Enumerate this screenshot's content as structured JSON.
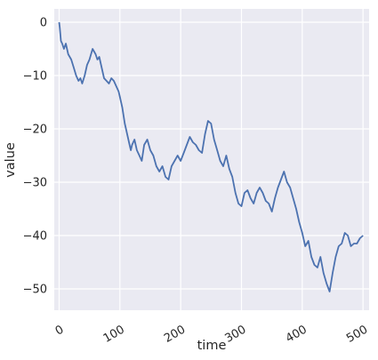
{
  "chart_data": {
    "type": "line",
    "xlabel": "time",
    "ylabel": "value",
    "xlim": [
      -8,
      510
    ],
    "ylim": [
      -54,
      2.5
    ],
    "xticks": [
      0,
      100,
      200,
      300,
      400,
      500
    ],
    "yticks": [
      0,
      -10,
      -20,
      -30,
      -40,
      -50
    ],
    "x_tick_labels": [
      "0",
      "100",
      "200",
      "300",
      "400",
      "500"
    ],
    "y_tick_labels": [
      "0",
      "−10",
      "−20",
      "−30",
      "−40",
      "−50"
    ],
    "grid": true,
    "background": "#eaeaf2",
    "line_color": "#4c72b0",
    "series": [
      {
        "x": [
          0,
          1,
          3,
          5,
          8,
          11,
          15,
          20,
          24,
          28,
          32,
          35,
          38,
          42,
          46,
          50,
          55,
          60,
          63,
          66,
          70,
          74,
          78,
          82,
          86,
          90,
          94,
          98,
          100,
          104,
          108,
          112,
          116,
          118,
          120,
          124,
          128,
          132,
          136,
          140,
          145,
          150,
          155,
          160,
          165,
          170,
          175,
          180,
          185,
          190,
          195,
          200,
          205,
          210,
          215,
          220,
          225,
          230,
          235,
          240,
          245,
          250,
          255,
          260,
          265,
          270,
          275,
          280,
          285,
          290,
          295,
          300,
          305,
          310,
          315,
          320,
          325,
          330,
          335,
          340,
          345,
          350,
          355,
          360,
          365,
          370,
          375,
          380,
          385,
          390,
          395,
          400,
          405,
          410,
          415,
          420,
          425,
          430,
          435,
          440,
          445,
          450,
          455,
          460,
          465,
          470,
          475,
          480,
          485,
          490,
          495,
          500
        ],
        "y": [
          0,
          -1,
          -3.5,
          -4,
          -5,
          -4,
          -6,
          -7,
          -8.5,
          -10,
          -11,
          -10.5,
          -11.5,
          -10,
          -8,
          -7,
          -5,
          -6,
          -7,
          -6.5,
          -8.5,
          -10.5,
          -11,
          -11.5,
          -10.5,
          -11,
          -12,
          -13,
          -14,
          -16,
          -19,
          -21,
          -23,
          -24,
          -23,
          -22,
          -24,
          -25,
          -26,
          -23,
          -22,
          -24,
          -25,
          -27,
          -28,
          -27,
          -29,
          -29.5,
          -27,
          -26,
          -25,
          -26,
          -24.5,
          -23,
          -21.5,
          -22.5,
          -23,
          -24,
          -24.5,
          -21,
          -18.5,
          -19,
          -22,
          -24,
          -26,
          -27,
          -25,
          -27.5,
          -29,
          -32,
          -34,
          -34.5,
          -32,
          -31.5,
          -33,
          -34,
          -32,
          -31,
          -32,
          -33.5,
          -34,
          -35.5,
          -33,
          -31,
          -29.5,
          -28,
          -30,
          -31,
          -33,
          -35,
          -37.5,
          -39.5,
          -42,
          -41,
          -44,
          -45.5,
          -46,
          -44,
          -47,
          -49,
          -50.5,
          -47,
          -44,
          -42,
          -41.5,
          -39.5,
          -40,
          -42,
          -41.5,
          -41.5,
          -40.5,
          -40
        ]
      }
    ]
  }
}
